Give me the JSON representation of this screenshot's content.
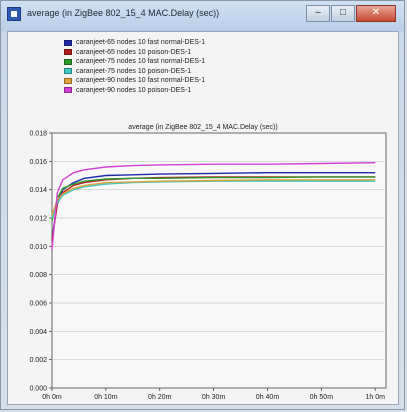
{
  "window": {
    "title": "average (in ZigBee 802_15_4 MAC.Delay (sec))"
  },
  "title_buttons": {
    "minimize": "–",
    "maximize": "□",
    "close": "✕"
  },
  "colors": {
    "titlebar": "#c4d6ee",
    "plot_background": "#f8f8f8",
    "grid": "#c8c8c8"
  },
  "chart_data": {
    "type": "line",
    "title": "average (in ZigBee 802_15_4 MAC.Delay (sec))",
    "xlabel": "",
    "ylabel": "",
    "x_tick_labels": [
      "0h 0m",
      "0h 10m",
      "0h 20m",
      "0h 30m",
      "0h 40m",
      "0h 50m",
      "1h 0m"
    ],
    "y_tick_labels": [
      "0.000",
      "0.002",
      "0.004",
      "0.006",
      "0.008",
      "0.010",
      "0.012",
      "0.014",
      "0.016",
      "0.018"
    ],
    "xlim": [
      0,
      62
    ],
    "ylim": [
      0,
      0.018
    ],
    "grid": true,
    "legend_position": "top",
    "x": [
      0,
      1,
      2,
      4,
      6,
      10,
      15,
      20,
      30,
      40,
      50,
      60
    ],
    "series": [
      {
        "name": "caranjeet-65 nodes 10 fast normal-DES-1",
        "color": "#1f2aa8",
        "values": [
          0.0105,
          0.0132,
          0.014,
          0.0145,
          0.0148,
          0.015,
          0.01505,
          0.0151,
          0.01515,
          0.0152,
          0.0152,
          0.0152
        ]
      },
      {
        "name": "caranjeet-65 nodes 10 poison-DES-1",
        "color": "#b51f1f",
        "values": [
          0.0104,
          0.013,
          0.0138,
          0.0143,
          0.0145,
          0.0147,
          0.0148,
          0.01485,
          0.0149,
          0.0149,
          0.0149,
          0.0149
        ]
      },
      {
        "name": "caranjeet-75 nodes 10 fast normal-DES-1",
        "color": "#2e9a2e",
        "values": [
          0.0118,
          0.0134,
          0.0141,
          0.0144,
          0.0146,
          0.01475,
          0.0148,
          0.0148,
          0.01485,
          0.01485,
          0.0149,
          0.0149
        ]
      },
      {
        "name": "caranjeet-75 nodes 10 poison-DES-1",
        "color": "#3fc9c0",
        "values": [
          0.012,
          0.0131,
          0.0136,
          0.014,
          0.0142,
          0.0144,
          0.0145,
          0.01455,
          0.0146,
          0.0146,
          0.0146,
          0.0146
        ]
      },
      {
        "name": "caranjeet-90 nodes 10 fast normal-DES-1",
        "color": "#e0a23a",
        "values": [
          0.0122,
          0.0133,
          0.0137,
          0.0141,
          0.0143,
          0.0145,
          0.01455,
          0.0146,
          0.01465,
          0.0147,
          0.0147,
          0.0147
        ]
      },
      {
        "name": "caranjeet-90 nodes 10 poison-DES-1",
        "color": "#d43fd6",
        "values": [
          0.0098,
          0.0138,
          0.0147,
          0.0152,
          0.0154,
          0.0156,
          0.0157,
          0.01575,
          0.0158,
          0.0158,
          0.01585,
          0.0159
        ]
      }
    ]
  }
}
